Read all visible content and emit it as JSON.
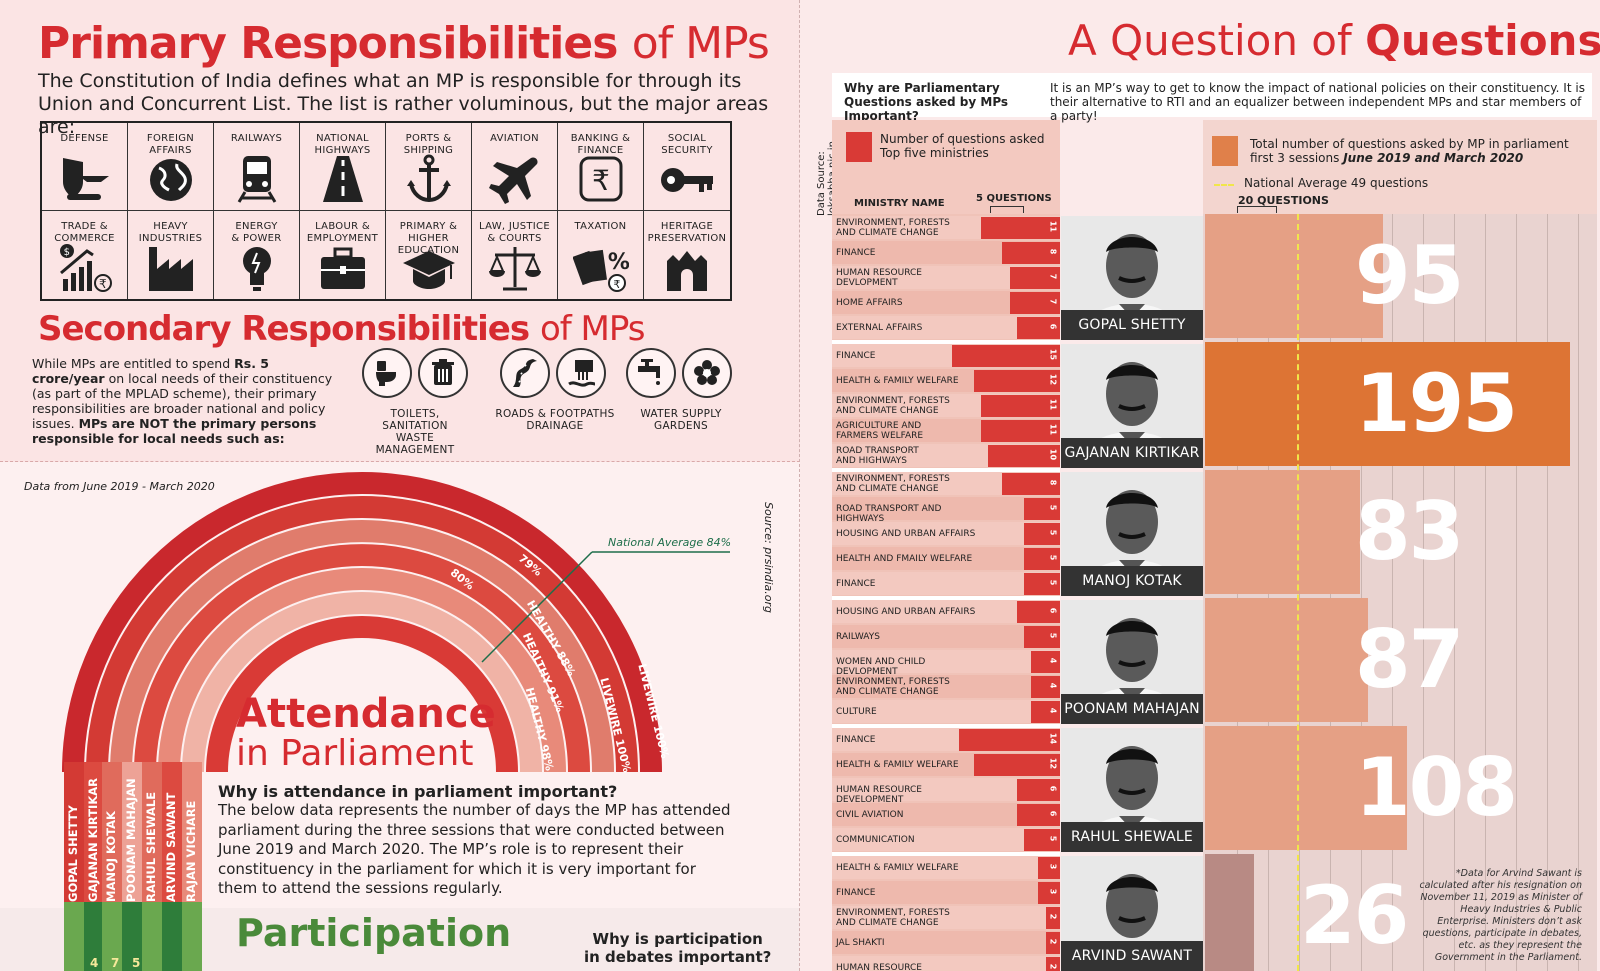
{
  "primary": {
    "title_bold": "Primary Responsibilities",
    "title_thin": "of MPs",
    "intro_line1": "The Constitution of India defines what an MP is responsible for through its",
    "intro_line2": "Union and Concurrent List. The list is rather voluminous, but the major areas are:",
    "areas": [
      {
        "label": "DEFENSE",
        "icon": "defense-icon"
      },
      {
        "label": "FOREIGN\nAFFAIRS",
        "icon": "globe-icon"
      },
      {
        "label": "RAILWAYS",
        "icon": "train-icon"
      },
      {
        "label": "NATIONAL\nHIGHWAYS",
        "icon": "highway-icon"
      },
      {
        "label": "PORTS &\nSHIPPING",
        "icon": "anchor-icon"
      },
      {
        "label": "AVIATION",
        "icon": "airplane-icon"
      },
      {
        "label": "BANKING &\nFINANCE",
        "icon": "rupee-icon"
      },
      {
        "label": "SOCIAL\nSECURITY",
        "icon": "key-icon"
      },
      {
        "label": "TRADE &\nCOMMERCE",
        "icon": "chart-growth-icon"
      },
      {
        "label": "HEAVY\nINDUSTRIES",
        "icon": "factory-icon"
      },
      {
        "label": "ENERGY\n& POWER",
        "icon": "bulb-icon"
      },
      {
        "label": "LABOUR &\nEMPLOYMENT",
        "icon": "briefcase-icon"
      },
      {
        "label": "PRIMARY &\nHIGHER\nEDUCATION",
        "icon": "graduation-cap-icon"
      },
      {
        "label": "LAW, JUSTICE\n& COURTS",
        "icon": "scales-icon"
      },
      {
        "label": "TAXATION",
        "icon": "tax-icon"
      },
      {
        "label": "HERITAGE\nPRESERVATION",
        "icon": "monument-icon"
      }
    ]
  },
  "secondary": {
    "title_bold": "Secondary Responsibilities",
    "title_thin": "of MPs",
    "text_a": "While MPs are entitled to spend ",
    "text_b": "Rs. 5 crore/year",
    "text_c": " on local needs of their constituency (as part of the MPLAD scheme), their primary responsibilities are broader national and policy issues. ",
    "text_d": "MPs are NOT the primary persons responsible for local needs such as:",
    "groups": [
      {
        "caption1": "TOILETS, SANITATION",
        "caption2": "WASTE MANAGEMENT"
      },
      {
        "caption1": "ROADS & FOOTPATHS",
        "caption2": "DRAINAGE"
      },
      {
        "caption1": "WATER SUPPLY",
        "caption2": "GARDENS"
      }
    ]
  },
  "attendance": {
    "data_note": "Data from June 2019 - March 2020",
    "source": "Source: prsindia.org",
    "national_avg": "National Average 84%",
    "title_bold": "Attendance",
    "title_thin": "in Parliament",
    "why_title": "Why is attendance in parliament important?",
    "why_text": "The below data represents the number of days the MP has attended parliament during the three sessions that were conducted between June 2019 and March 2020. The MP’s role is to represent their constituency in the parliament for which it is very important for them to attend the sessions regularly.",
    "arc_labels": [
      "LIVEWIRE 100%",
      "LIVEWIRE 100%",
      "HEALTHY 98%",
      "HEALTHY 91%",
      "HEALTHY 88%",
      "79%",
      "80%"
    ],
    "mps": [
      "GOPAL SHETTY",
      "GAJANAN KIRTIKAR",
      "MANOJ KOTAK",
      "POONAM MAHAJAN",
      "RAHUL SHEWALE",
      "ARVIND SAWANT",
      "RAJAN VICHARE"
    ],
    "bottom_nums": [
      "4",
      "7",
      "5"
    ]
  },
  "participation": {
    "title": "Participation",
    "why": "Why is participation",
    "why2": "in debates important?"
  },
  "questions": {
    "title_thin": "A Question of",
    "title_bold": "Questions",
    "data_source": "Data Source: loksabha.nic.in",
    "why_title": "Why are Parliamentary Questions asked by MPs Important?",
    "why_text": "It is an MP’s way to get to know the impact of national policies on their constituency. It is their alternative to RTI and an equalizer between independent MPs and star members of a party!",
    "legend_left_1": "Number of questions asked",
    "legend_left_2": "Top five ministries",
    "legend_right_1": "Total number of questions asked by MP in parliament",
    "legend_right_2a": "first 3 sessions ",
    "legend_right_2b": "June 2019 and March 2020",
    "national_avg": "National Average 49 questions",
    "col_ministry": "MINISTRY NAME",
    "col_five": "5 QUESTIONS",
    "col_twenty": "20 QUESTIONS",
    "footnote": "*Data for Arvind Sawant is calculated after his resignation on November 11, 2019 as Minister of Heavy Industries & Public Enterprise. Ministers don’t ask questions, participate in debates, etc. as they represent the Government in the Parliament.",
    "colors": {
      "ministry_bar": "#d93a36",
      "total_bar": "#e0804a",
      "avg_line": "#f1e64a"
    }
  },
  "chart_data": {
    "type": "bar",
    "total_questions": [
      {
        "name": "GOPAL SHETTY",
        "value": 95
      },
      {
        "name": "GAJANAN KIRTIKAR",
        "value": 195
      },
      {
        "name": "MANOJ KOTAK",
        "value": 83
      },
      {
        "name": "POONAM MAHAJAN",
        "value": 87
      },
      {
        "name": "RAHUL SHEWALE",
        "value": 108
      },
      {
        "name": "ARVIND SAWANT",
        "value": 26
      }
    ],
    "national_average": 49,
    "ministries": [
      {
        "mp": "GOPAL SHETTY",
        "items": [
          {
            "name": "ENVIRONMENT, FORESTS\nAND CLIMATE CHANGE",
            "value": 11
          },
          {
            "name": "FINANCE",
            "value": 8
          },
          {
            "name": "HUMAN RESOURCE\nDEVLOPMENT",
            "value": 7
          },
          {
            "name": "HOME AFFAIRS",
            "value": 7
          },
          {
            "name": "EXTERNAL AFFAIRS",
            "value": 6
          }
        ]
      },
      {
        "mp": "GAJANAN KIRTIKAR",
        "items": [
          {
            "name": "FINANCE",
            "value": 15
          },
          {
            "name": "HEALTH & FAMILY WELFARE",
            "value": 12
          },
          {
            "name": "ENVIRONMENT, FORESTS\nAND CLIMATE CHANGE",
            "value": 11
          },
          {
            "name": "AGRICULTURE AND\nFARMERS WELFARE",
            "value": 11
          },
          {
            "name": "ROAD TRANSPORT\nAND HIGHWAYS",
            "value": 10
          }
        ]
      },
      {
        "mp": "MANOJ KOTAK",
        "items": [
          {
            "name": "ENVIRONMENT, FORESTS\nAND CLIMATE CHANGE",
            "value": 8
          },
          {
            "name": "ROAD TRANSPORT AND HIGHWAYS",
            "value": 5
          },
          {
            "name": "HOUSING AND URBAN AFFAIRS",
            "value": 5
          },
          {
            "name": "HEALTH AND FMAILY WELFARE",
            "value": 5
          },
          {
            "name": "FINANCE",
            "value": 5
          }
        ]
      },
      {
        "mp": "POONAM MAHAJAN",
        "items": [
          {
            "name": "HOUSING AND URBAN AFFAIRS",
            "value": 6
          },
          {
            "name": "RAILWAYS",
            "value": 5
          },
          {
            "name": "WOMEN AND CHILD DEVLOPMENT",
            "value": 4
          },
          {
            "name": "ENVIRONMENT, FORESTS\nAND CLIMATE CHANGE",
            "value": 4
          },
          {
            "name": "CULTURE",
            "value": 4
          }
        ]
      },
      {
        "mp": "RAHUL SHEWALE",
        "items": [
          {
            "name": "FINANCE",
            "value": 14
          },
          {
            "name": "HEALTH & FAMILY WELFARE",
            "value": 12
          },
          {
            "name": "HUMAN RESOURCE DEVELOPMENT",
            "value": 6
          },
          {
            "name": "CIVIL AVIATION",
            "value": 6
          },
          {
            "name": "COMMUNICATION",
            "value": 5
          }
        ]
      },
      {
        "mp": "ARVIND SAWANT",
        "items": [
          {
            "name": "HEALTH & FAMILY WELFARE",
            "value": 3
          },
          {
            "name": "FINANCE",
            "value": 3
          },
          {
            "name": "ENVIRONMENT, FORESTS\nAND CLIMATE CHANGE",
            "value": 2
          },
          {
            "name": "JAL SHAKTI",
            "value": 2
          },
          {
            "name": "HUMAN RESOURCE DEVELOPMENT",
            "value": 2
          }
        ]
      }
    ]
  }
}
